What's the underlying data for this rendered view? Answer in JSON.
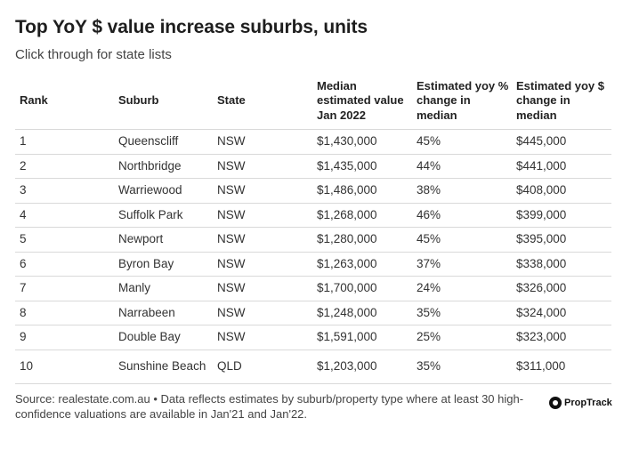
{
  "header": {
    "title": "Top YoY $ value increase suburbs, units",
    "subtitle": "Click through for state lists"
  },
  "table": {
    "columns": [
      "Rank",
      "Suburb",
      "State",
      "Median estimated value Jan 2022",
      "Estimated yoy % change in median",
      "Estimated yoy $ change in median"
    ],
    "rows": [
      [
        "1",
        "Queenscliff",
        "NSW",
        "$1,430,000",
        "45%",
        "$445,000"
      ],
      [
        "2",
        "Northbridge",
        "NSW",
        "$1,435,000",
        "44%",
        "$441,000"
      ],
      [
        "3",
        "Warriewood",
        "NSW",
        "$1,486,000",
        "38%",
        "$408,000"
      ],
      [
        "4",
        "Suffolk Park",
        "NSW",
        "$1,268,000",
        "46%",
        "$399,000"
      ],
      [
        "5",
        "Newport",
        "NSW",
        "$1,280,000",
        "45%",
        "$395,000"
      ],
      [
        "6",
        "Byron Bay",
        "NSW",
        "$1,263,000",
        "37%",
        "$338,000"
      ],
      [
        "7",
        "Manly",
        "NSW",
        "$1,700,000",
        "24%",
        "$326,000"
      ],
      [
        "8",
        "Narrabeen",
        "NSW",
        "$1,248,000",
        "35%",
        "$324,000"
      ],
      [
        "9",
        "Double Bay",
        "NSW",
        "$1,591,000",
        "25%",
        "$323,000"
      ],
      [
        "10",
        "Sunshine Beach",
        "QLD",
        "$1,203,000",
        "35%",
        "$311,000"
      ]
    ]
  },
  "footer": {
    "source": "Source: realestate.com.au • Data reflects estimates by suburb/property type where at least 30 high-confidence valuations are available in Jan'21 and Jan'22.",
    "logo_text": "PropTrack",
    "logo_icon": "proptrack-logo-icon"
  }
}
